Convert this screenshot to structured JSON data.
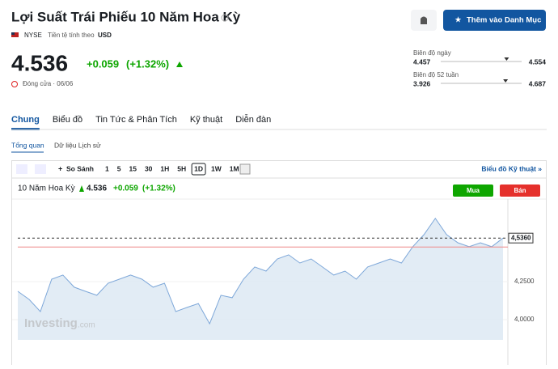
{
  "header": {
    "title": "Lợi Suất Trái Phiếu 10 Năm Hoa Kỳ",
    "exchange": "NYSE",
    "currency_label": "Tiền tệ tính theo",
    "currency": "USD",
    "bell_button": "",
    "watchlist_button": "Thêm vào Danh Mục"
  },
  "quote": {
    "price": 4.536,
    "change": "+0.059",
    "change_pct": "(+1.32%)",
    "status": "Đóng cửa · 06/06"
  },
  "ranges": [
    {
      "label": "Biên độ ngày",
      "low": 4.457,
      "high": 4.554
    },
    {
      "label": "Biên độ 52 tuần",
      "low": 3.926,
      "high": 4.687
    }
  ],
  "tabs": [
    "Chung",
    "Biểu đồ",
    "Tin Tức & Phân Tích",
    "Kỹ thuật",
    "Diễn đàn"
  ],
  "subtabs": [
    "Tổng quan",
    "Dữ liệu Lịch sử"
  ],
  "toolbar": {
    "compare": "So Sánh",
    "intervals": [
      "1",
      "5",
      "15",
      "30",
      "1H",
      "5H",
      "1D",
      "1W",
      "1M"
    ],
    "active": "1D",
    "technical": "Biểu đồ Kỹ thuật »"
  },
  "chart": {
    "type": "line",
    "name": "10 Năm Hoa Kỳ",
    "price": "4.536",
    "change": "+0.059",
    "change_pct": "(+1.32%)",
    "buy": "Mua",
    "sell": "Bán",
    "watermark": "Investing",
    "watermark_suffix": ".com",
    "color": "#7da7d9",
    "values": [
      4.186,
      4.133,
      4.053,
      4.266,
      4.293,
      4.213,
      4.186,
      4.16,
      4.239,
      4.266,
      4.293,
      4.266,
      4.213,
      4.239,
      4.053,
      4.08,
      4.106,
      3.973,
      4.16,
      4.144,
      4.266,
      4.346,
      4.319,
      4.399,
      4.426,
      4.372,
      4.399,
      4.346,
      4.293,
      4.319,
      4.266,
      4.346,
      4.372,
      4.399,
      4.372,
      4.479,
      4.559,
      4.665,
      4.559,
      4.505,
      4.479,
      4.505,
      4.479,
      4.536
    ],
    "ylim": [
      3.867,
      4.771
    ],
    "yticks": [
      {
        "value": 4.0,
        "label": "4,0000"
      },
      {
        "value": 4.25,
        "label": "4,2500"
      }
    ],
    "reference_line": 4.477,
    "price_tag": {
      "value": 4.536,
      "label": "4,5360"
    }
  }
}
